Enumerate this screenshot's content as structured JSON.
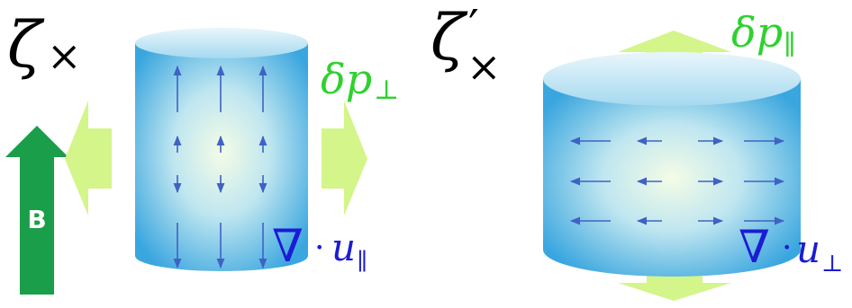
{
  "colors": {
    "field_arrow": "#1a9e4a",
    "pressure_arrow": "#d4f58a",
    "flow_arrow": "#3f62c4",
    "pressure_label": "#2fd12f",
    "divergence_label": "#1b1bd6",
    "cylinder_edge": "#3da7de",
    "cylinder_center": "#f2fbe0"
  },
  "left": {
    "mode_symbol": "ζ",
    "mode_subscript": "×",
    "field_label": "B",
    "pressure_symbol": "δp",
    "pressure_subscript": "⊥",
    "divergence_operator": "∇",
    "divergence_dot": "·",
    "divergence_symbol": "u",
    "divergence_subscript": "∥"
  },
  "right": {
    "mode_symbol": "ζ",
    "mode_prime": "′",
    "mode_subscript": "×",
    "pressure_symbol": "δp",
    "pressure_subscript": "∥",
    "divergence_operator": "∇",
    "divergence_dot": "·",
    "divergence_symbol": "u",
    "divergence_subscript": "⊥"
  }
}
